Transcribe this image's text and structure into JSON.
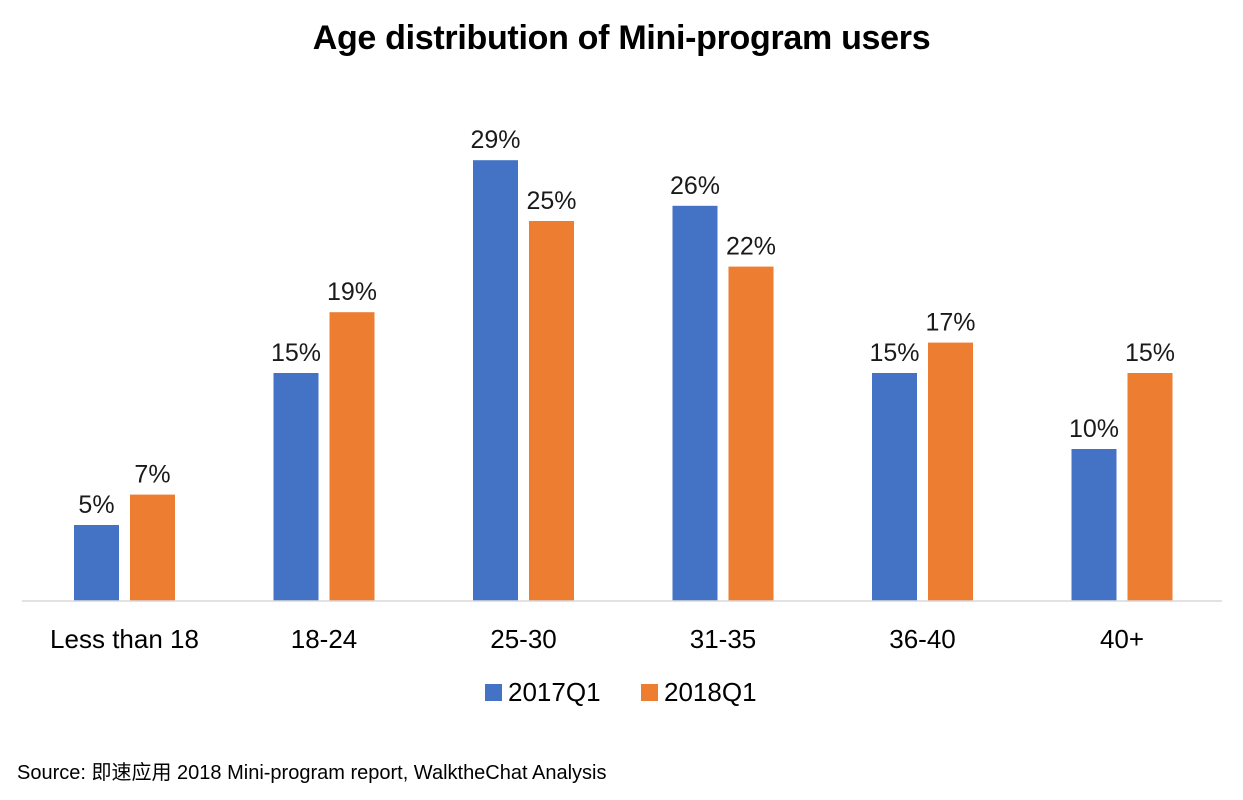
{
  "chart_data": {
    "type": "bar",
    "title": "Age distribution of Mini-program users",
    "categories": [
      "Less than 18",
      "18-24",
      "25-30",
      "31-35",
      "36-40",
      "40+"
    ],
    "series": [
      {
        "name": "2017Q1",
        "color": "#4472c4",
        "values": [
          5,
          15,
          29,
          26,
          15,
          10
        ],
        "labels": [
          "5%",
          "15%",
          "29%",
          "26%",
          "15%",
          "10%"
        ]
      },
      {
        "name": "2018Q1",
        "color": "#ed7d31",
        "values": [
          7,
          19,
          25,
          22,
          17,
          15
        ],
        "labels": [
          "7%",
          "19%",
          "25%",
          "22%",
          "17%",
          "15%"
        ]
      }
    ],
    "ylim": [
      0,
      32
    ],
    "grid": false,
    "legend_position": "bottom"
  },
  "source": "Source: 即速应用 2018 Mini-program report, WalktheChat Analysis"
}
